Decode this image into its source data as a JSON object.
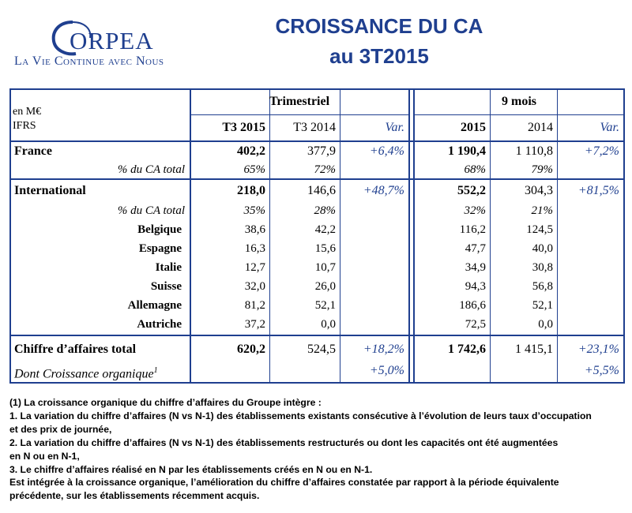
{
  "logo": {
    "wordmark": "ORPEA",
    "tagline": "La Vie Continue avec Nous"
  },
  "title": {
    "line1": "CROISSANCE DU CA",
    "line2": "au  3T2015"
  },
  "table": {
    "header": {
      "unit": "en M€",
      "ifrs": "IFRS",
      "group_quarter": "Trimestriel",
      "group_9m": "9 mois",
      "q_cur": "T3 2015",
      "q_prev": "T3 2014",
      "q_var": "Var.",
      "m_cur": "2015",
      "m_prev": "2014",
      "m_var": "Var."
    },
    "france": {
      "label": "France",
      "q_cur": "402,2",
      "q_prev": "377,9",
      "q_var": "+6,4%",
      "m_cur": "1 190,4",
      "m_prev": "1 110,8",
      "m_var": "+7,2%"
    },
    "france_share": {
      "label": "% du CA total",
      "q_cur": "65%",
      "q_prev": "72%",
      "m_cur": "68%",
      "m_prev": "79%"
    },
    "international": {
      "label": "International",
      "q_cur": "218,0",
      "q_prev": "146,6",
      "q_var": "+48,7%",
      "m_cur": "552,2",
      "m_prev": "304,3",
      "m_var": "+81,5%"
    },
    "international_share": {
      "label": "% du CA total",
      "q_cur": "35%",
      "q_prev": "28%",
      "m_cur": "32%",
      "m_prev": "21%"
    },
    "countries": [
      {
        "label": "Belgique",
        "q_cur": "38,6",
        "q_prev": "42,2",
        "m_cur": "116,2",
        "m_prev": "124,5"
      },
      {
        "label": "Espagne",
        "q_cur": "16,3",
        "q_prev": "15,6",
        "m_cur": "47,7",
        "m_prev": "40,0"
      },
      {
        "label": "Italie",
        "q_cur": "12,7",
        "q_prev": "10,7",
        "m_cur": "34,9",
        "m_prev": "30,8"
      },
      {
        "label": "Suisse",
        "q_cur": "32,0",
        "q_prev": "26,0",
        "m_cur": "94,3",
        "m_prev": "56,8"
      },
      {
        "label": "Allemagne",
        "q_cur": "81,2",
        "q_prev": "52,1",
        "m_cur": "186,6",
        "m_prev": "52,1"
      },
      {
        "label": "Autriche",
        "q_cur": "37,2",
        "q_prev": "0,0",
        "m_cur": "72,5",
        "m_prev": "0,0"
      }
    ],
    "total": {
      "label": "Chiffre d’affaires total",
      "q_cur": "620,2",
      "q_prev": "524,5",
      "q_var": "+18,2%",
      "m_cur": "1 742,6",
      "m_prev": "1 415,1",
      "m_var": "+23,1%"
    },
    "organic": {
      "label": "Dont Croissance organique",
      "sup": "1",
      "q_var": "+5,0%",
      "m_var": "+5,5%"
    }
  },
  "notes": [
    "(1) La croissance organique du chiffre d’affaires du Groupe intègre :",
    "1. La variation du chiffre d’affaires (N vs N-1) des établissements existants consécutive à l’évolution de leurs taux d’occupation",
    "et des prix de journée,",
    "2. La variation du chiffre d’affaires (N vs N-1) des établissements restructurés ou dont les capacités ont été augmentées",
    "en N ou en N-1,",
    "3. Le chiffre d’affaires réalisé en N par les établissements créés en N ou en N-1.",
    "Est intégrée à la croissance organique, l’amélioration du chiffre d’affaires constatée par rapport à la période équivalente",
    "précédente, sur les établissements récemment acquis."
  ]
}
